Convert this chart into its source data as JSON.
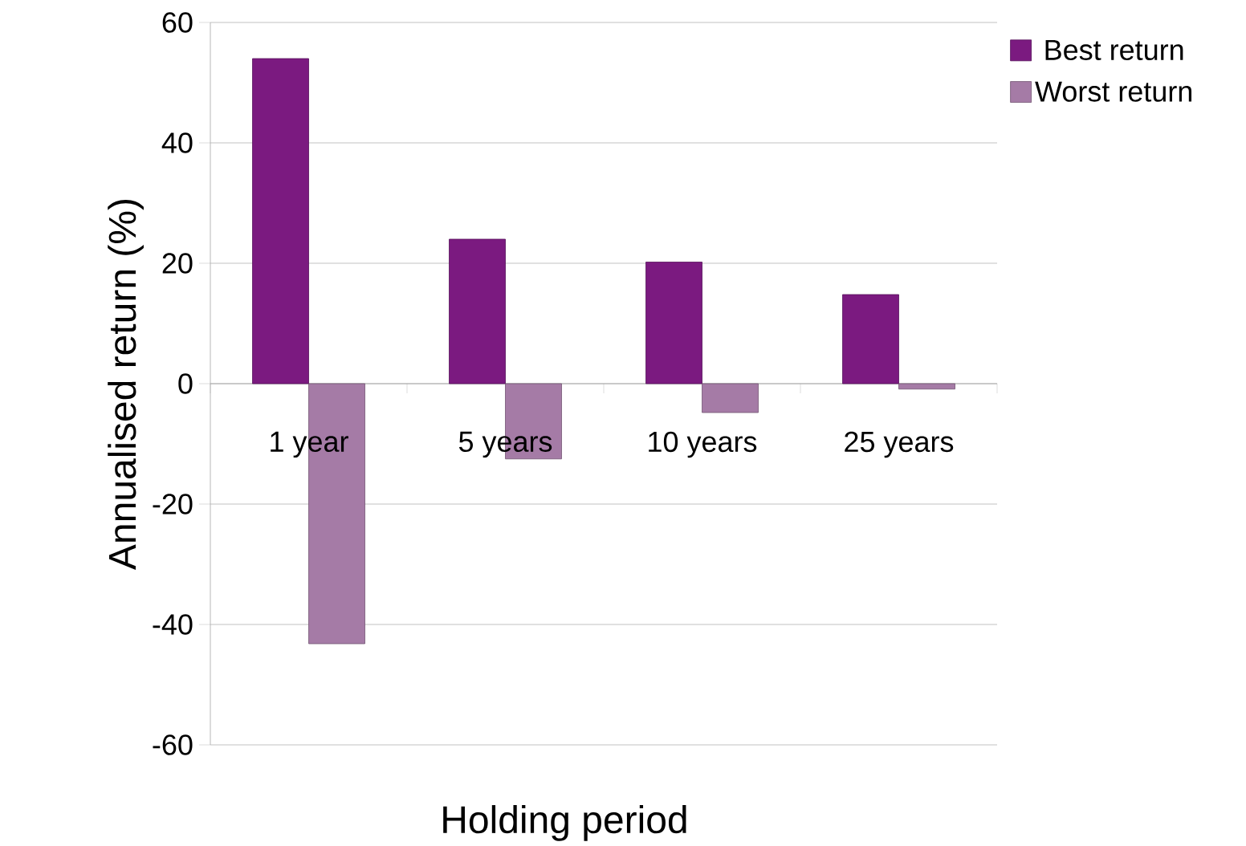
{
  "chart_data": {
    "type": "bar",
    "xlabel": "Holding period",
    "ylabel": "Annualised return (%)",
    "categories": [
      "1 year",
      "5 years",
      "10 years",
      "25 years"
    ],
    "series": [
      {
        "name": "Best return",
        "color": "#7b1a80",
        "values": [
          54,
          24,
          20.2,
          14.8
        ]
      },
      {
        "name": "Worst return",
        "color": "#a57ba6",
        "values": [
          -43.2,
          -12.5,
          -4.8,
          -0.9
        ]
      }
    ],
    "ylim": [
      -60,
      60
    ],
    "yticks": [
      -60,
      -40,
      -20,
      0,
      20,
      40,
      60
    ],
    "grid": "y",
    "legend": "top right"
  }
}
